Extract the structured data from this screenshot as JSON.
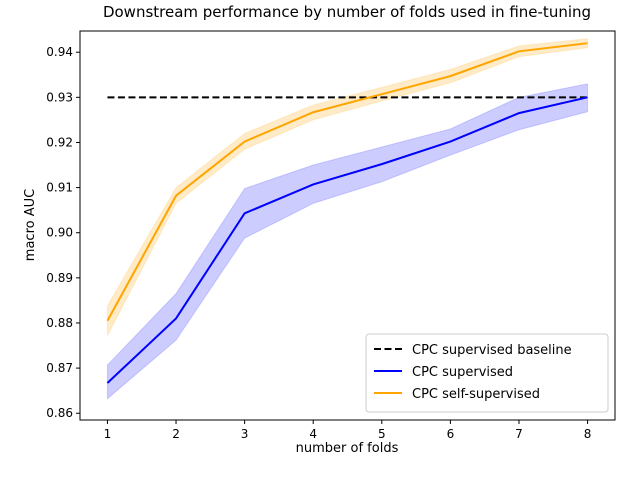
{
  "chart_data": {
    "type": "line",
    "title": "Downstream performance by number of folds used in fine-tuning",
    "xlabel": "number of folds",
    "ylabel": "macro AUC",
    "x": [
      1,
      2,
      3,
      4,
      5,
      6,
      7,
      8
    ],
    "xlim": [
      0.6,
      8.4
    ],
    "ylim": [
      0.8585,
      0.9447
    ],
    "xticks": [
      "1",
      "2",
      "3",
      "4",
      "5",
      "6",
      "7",
      "8"
    ],
    "yticks": [
      "0.86",
      "0.87",
      "0.88",
      "0.89",
      "0.90",
      "0.91",
      "0.92",
      "0.93",
      "0.94"
    ],
    "grid": false,
    "legend_position": "bottom-right",
    "series": [
      {
        "name": "CPC supervised baseline",
        "color": "#000000",
        "style": "dashed",
        "values": [
          0.93,
          0.93,
          0.93,
          0.93,
          0.93,
          0.93,
          0.93,
          0.93
        ]
      },
      {
        "name": "CPC supervised",
        "color": "#0000ff",
        "style": "solid",
        "values": [
          0.8667,
          0.881,
          0.9043,
          0.9107,
          0.9152,
          0.9202,
          0.9265,
          0.93
        ],
        "band_low": [
          0.8632,
          0.8762,
          0.8988,
          0.9065,
          0.9113,
          0.9172,
          0.9228,
          0.9268
        ],
        "band_high": [
          0.8707,
          0.8865,
          0.9098,
          0.915,
          0.919,
          0.923,
          0.93,
          0.933
        ]
      },
      {
        "name": "CPC self-supervised",
        "color": "#ffa500",
        "style": "solid",
        "values": [
          0.8805,
          0.9082,
          0.9202,
          0.9267,
          0.9307,
          0.9347,
          0.9402,
          0.942
        ],
        "band_low": [
          0.8772,
          0.9065,
          0.9185,
          0.925,
          0.9292,
          0.9332,
          0.939,
          0.941
        ],
        "band_high": [
          0.8838,
          0.91,
          0.922,
          0.9283,
          0.9322,
          0.9362,
          0.9414,
          0.943
        ]
      }
    ]
  }
}
